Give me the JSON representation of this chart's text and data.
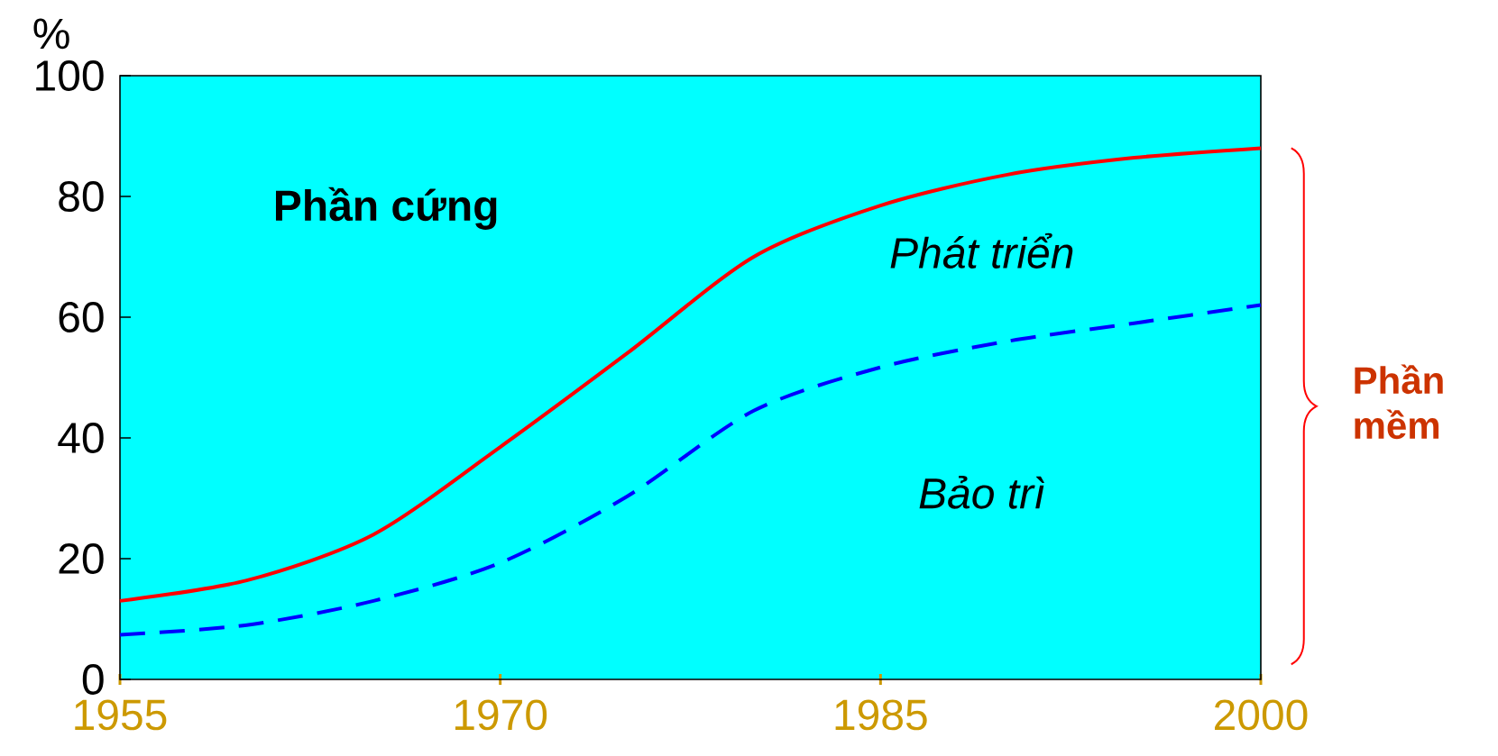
{
  "chart_data": {
    "type": "line",
    "ylabel": "%",
    "x": [
      1955,
      1960,
      1965,
      1970,
      1975,
      1980,
      1985,
      1990,
      1995,
      2000
    ],
    "series": [
      {
        "color": "#ff0000",
        "line_style": "solid",
        "values": [
          13,
          16.4,
          24,
          38.5,
          54,
          70,
          78.5,
          83.6,
          86.4,
          88
        ]
      },
      {
        "color": "#0000ff",
        "line_style": "dashed",
        "values": [
          7.4,
          9,
          13,
          19.3,
          30.3,
          44.5,
          51.7,
          56,
          59,
          62
        ]
      }
    ],
    "xlim": [
      1955,
      2000
    ],
    "ylim": [
      0,
      100
    ],
    "xticks": [
      1955,
      1970,
      1985,
      2000
    ],
    "yticks": [
      0,
      20,
      40,
      60,
      80,
      100
    ],
    "annotations": [
      "Phần cứng",
      "Phát triển",
      "Bảo trì",
      "Phần mềm"
    ]
  }
}
